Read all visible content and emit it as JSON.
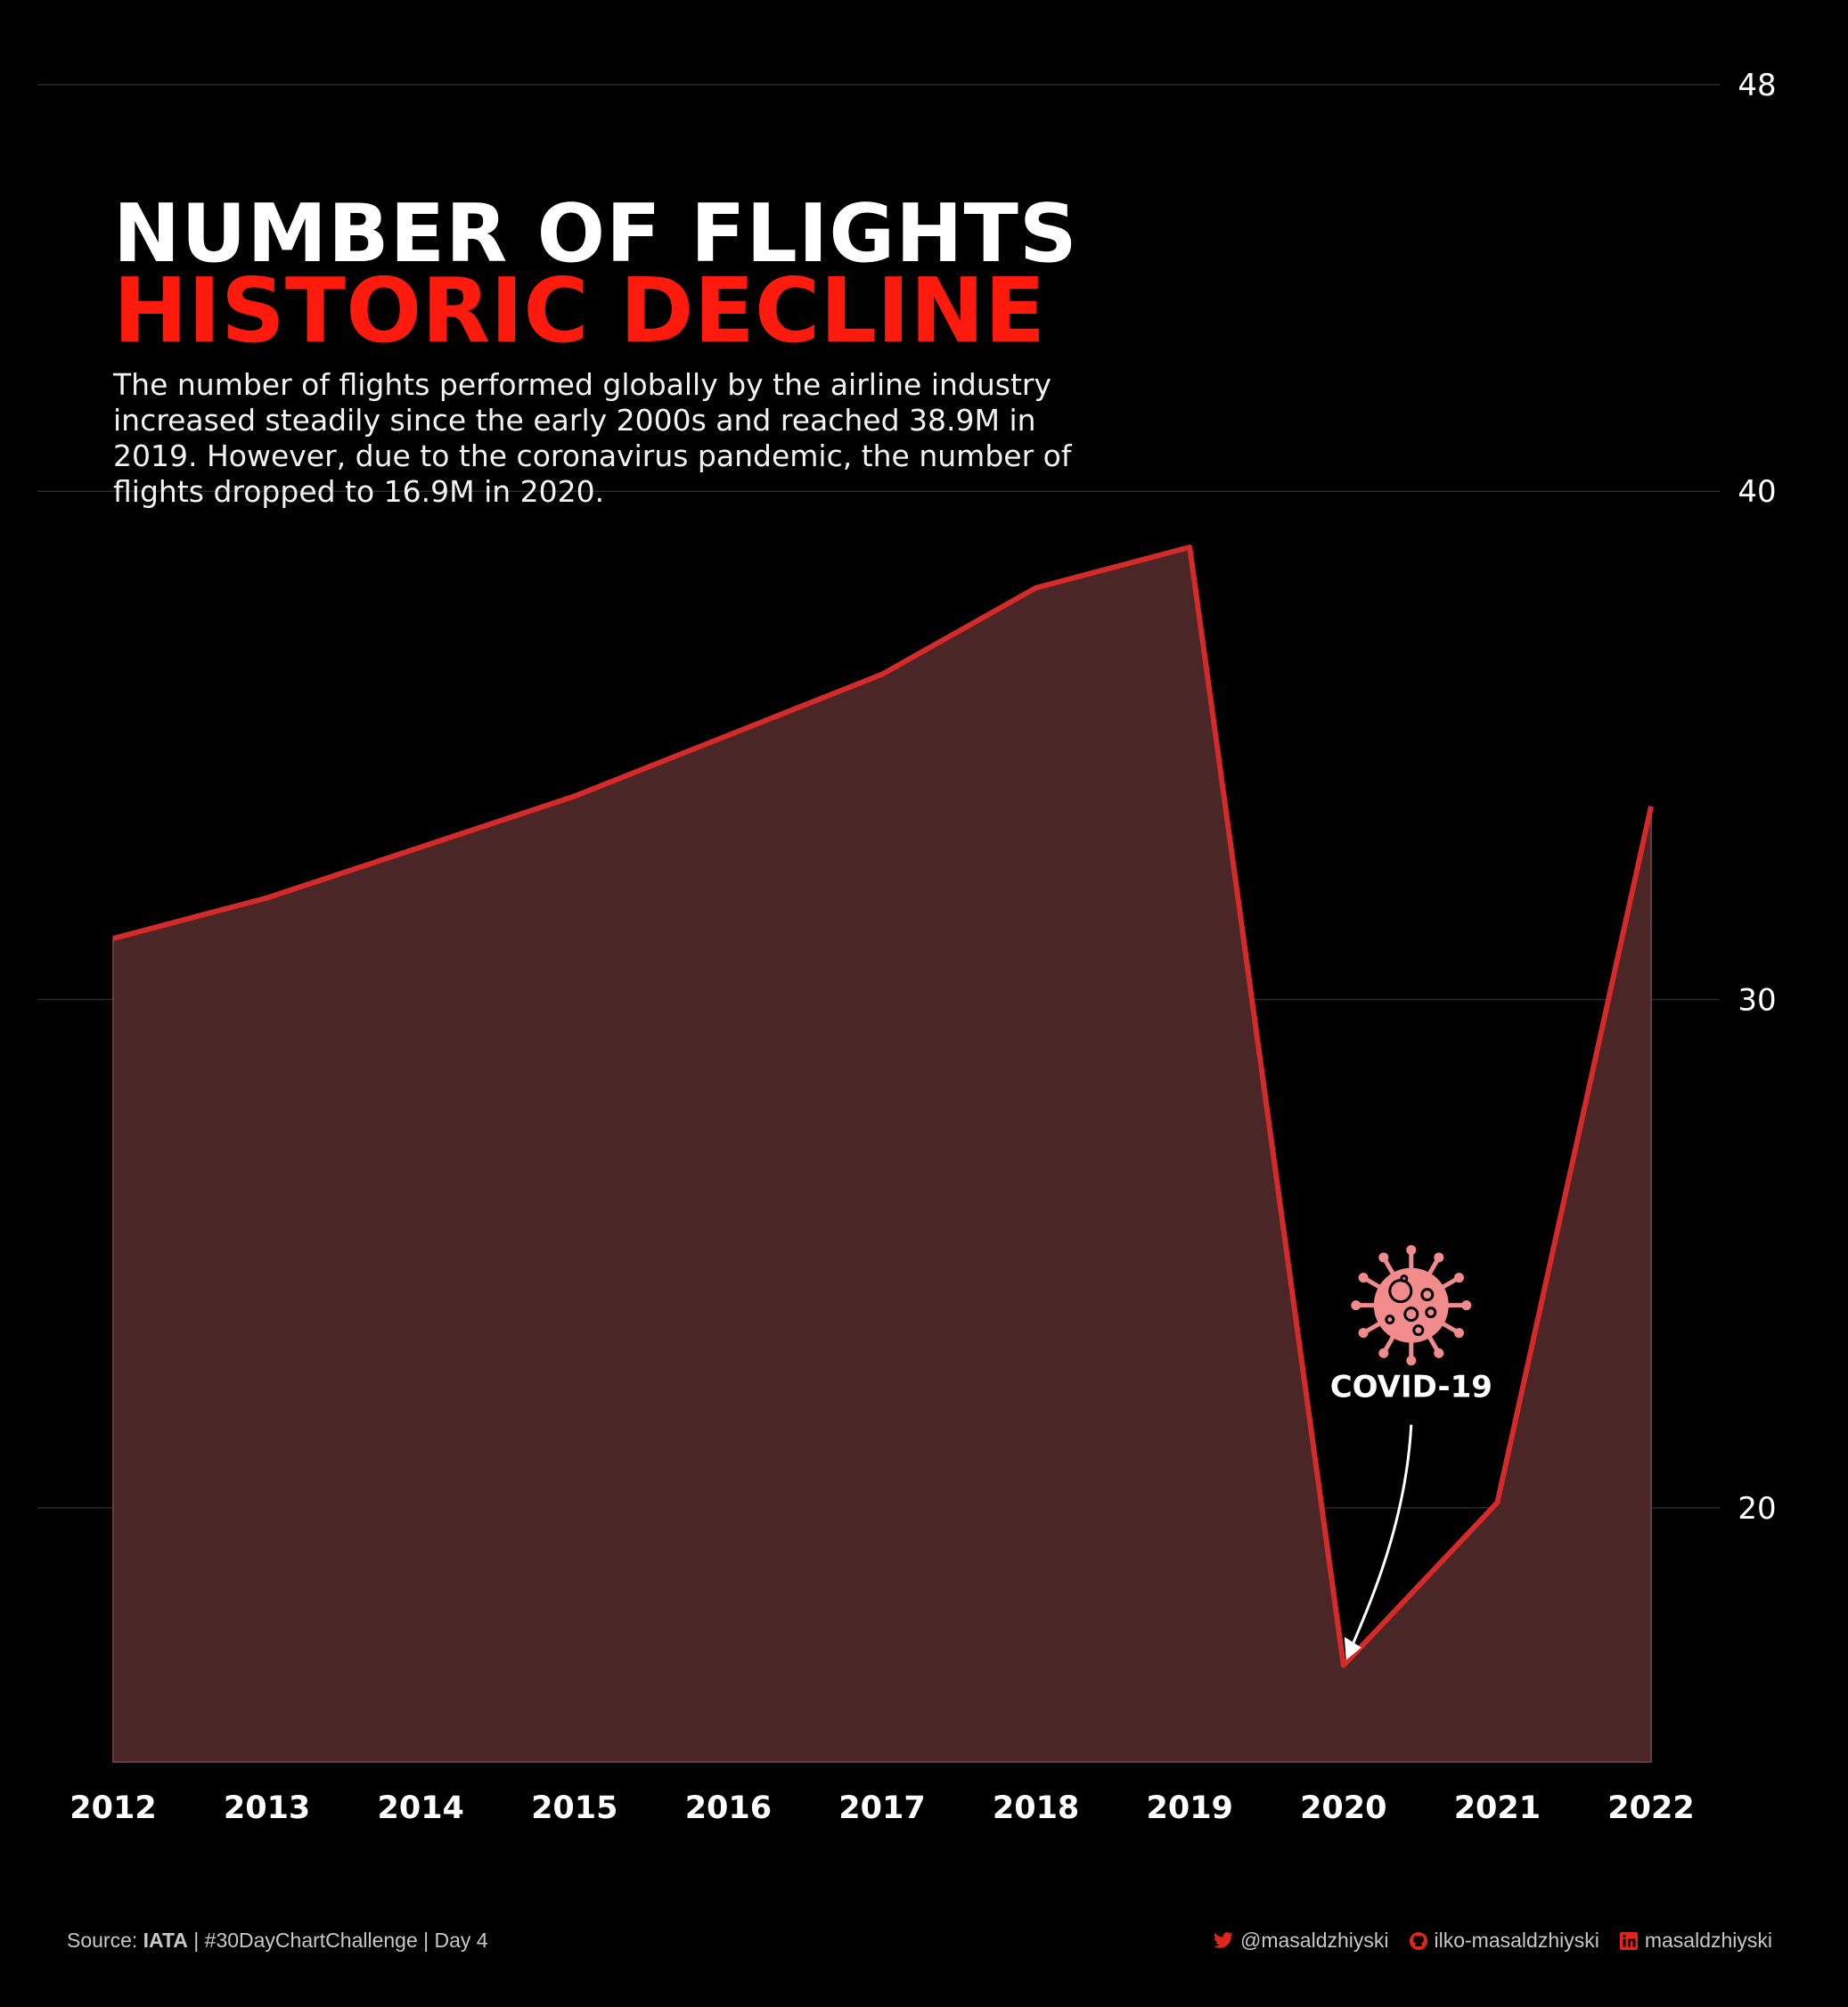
{
  "header": {
    "title_line1": "NUMBER OF FLIGHTS",
    "title_line2": "HISTORIC DECLINE",
    "description": "The number of flights performed globally by the airline industry increased steadily since the early 2000s and reached 38.9M in 2019. However, due to the coronavirus pandemic, the number of flights dropped to 16.9M in 2020."
  },
  "annotation": {
    "label": "COVID-19",
    "icon": "virus-icon",
    "target_year": "2020"
  },
  "footer": {
    "source_prefix": "Source: ",
    "source_name": "IATA",
    "source_suffix": " | #30DayChartChallenge | Day 4",
    "twitter": "@masaldzhiyski",
    "github": "ilko-masaldzhiyski",
    "linkedin": "masaldzhiyski"
  },
  "colors": {
    "background": "#000000",
    "line": "#d42a2a",
    "area": "#4a2626",
    "accent": "#ff1a0e",
    "virus": "#f28b8b"
  },
  "chart_data": {
    "type": "area",
    "x": [
      "2012",
      "2013",
      "2014",
      "2015",
      "2016",
      "2017",
      "2018",
      "2019",
      "2020",
      "2021",
      "2022"
    ],
    "values": [
      31.2,
      32.0,
      33.0,
      34.0,
      35.2,
      36.4,
      38.1,
      38.9,
      16.9,
      20.1,
      33.8
    ],
    "ylim": [
      15,
      48
    ],
    "yticks": [
      20,
      30,
      40,
      48
    ],
    "y_axis_side": "right",
    "grid": true,
    "legend": "none"
  }
}
